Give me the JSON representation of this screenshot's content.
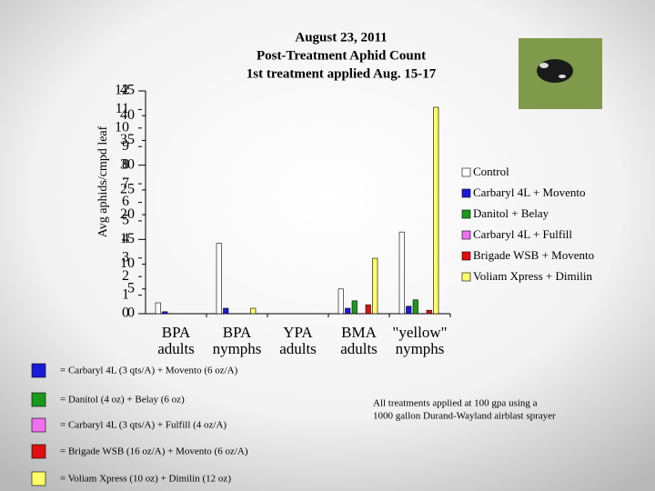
{
  "chart_data": {
    "type": "bar",
    "title": [
      "August 23, 2011",
      "Post-Treatment Aphid Count",
      "1st treatment applied Aug. 15-17"
    ],
    "y_label": "Avg aphids/cmpd leaf",
    "categories": [
      [
        "BPA",
        "adults"
      ],
      [
        "BPA",
        "nymphs"
      ],
      [
        "YPA",
        "adults"
      ],
      [
        "BMA",
        "adults"
      ],
      [
        "\"yellow\"",
        "nymphs"
      ]
    ],
    "series": [
      {
        "name": "Control",
        "color": "#ffffff",
        "values": [
          2.2,
          14.2,
          0,
          5.0,
          16.5
        ]
      },
      {
        "name": "Carbaryl 4L + Movento",
        "color": "#1a1adc",
        "values": [
          0.4,
          1.1,
          0,
          1.1,
          1.5
        ]
      },
      {
        "name": "Danitol + Belay",
        "color": "#1a9a1a",
        "values": [
          0,
          0,
          0,
          2.6,
          2.8
        ]
      },
      {
        "name": "Carbaryl 4L + Fulfill",
        "color": "#f070f0",
        "values": [
          0,
          0,
          0,
          0,
          0
        ]
      },
      {
        "name": "Brigade WSB + Movento",
        "color": "#e01010",
        "values": [
          0,
          0,
          0,
          1.8,
          0.7
        ]
      },
      {
        "name": "Voliam Xpress + Dimilin",
        "color": "#ffff66",
        "values": [
          0,
          1.1,
          0,
          11.2,
          41.7
        ]
      }
    ],
    "ylim": [
      0,
      45
    ],
    "yticks": [
      0,
      5,
      10,
      15,
      20,
      25,
      30,
      35,
      40,
      45
    ],
    "y2lim": [
      0,
      12
    ],
    "y2ticks": [
      0,
      1,
      2,
      3,
      4,
      5,
      6,
      7,
      8,
      9,
      10,
      11,
      12
    ],
    "legend": "right"
  },
  "footnotes": [
    {
      "color": "#1a1adc",
      "text": "= Carbaryl 4L (3 qts/A) + Movento (6 oz/A)"
    },
    {
      "color": "#1a9a1a",
      "text": "= Danitol (4 oz) + Belay (6 oz)"
    },
    {
      "color": "#f070f0",
      "text": "= Carbaryl 4L (3 qts/A) + Fulfill (4 oz/A)"
    },
    {
      "color": "#e01010",
      "text": "= Brigade WSB (16 oz/A) + Movento (6 oz/A)"
    },
    {
      "color": "#ffff66",
      "text": "= Voliam Xpress (10 oz) + Dimilin (12 oz)"
    }
  ],
  "note": [
    "All treatments applied at 100 gpa using a",
    "1000 gallon Durand-Wayland airblast sprayer"
  ]
}
